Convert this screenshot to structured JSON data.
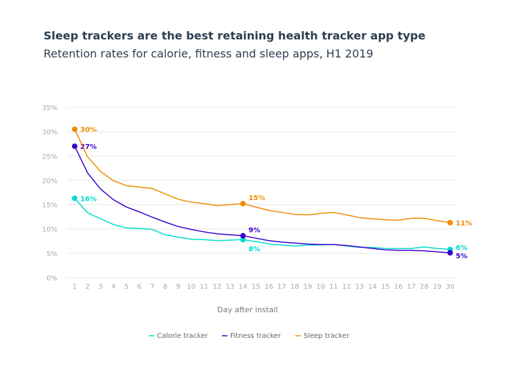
{
  "chart_data": {
    "type": "line",
    "title": "Sleep trackers are the best retaining health tracker app type",
    "subtitle": "Retention rates for calorie, fitness and sleep apps, H1 2019",
    "xlabel": "Day after install",
    "ylabel": "",
    "ylim": [
      0,
      35
    ],
    "y_ticks": [
      "0%",
      "5%",
      "10%",
      "15%",
      "20%",
      "25%",
      "30%",
      "35%"
    ],
    "categories": [
      "1",
      "2",
      "3",
      "4",
      "5",
      "6",
      "7",
      "8",
      "9",
      "10",
      "11",
      "12",
      "13",
      "14",
      "15",
      "16",
      "17",
      "18",
      "19",
      "10",
      "11",
      "12",
      "13",
      "14",
      "15",
      "16",
      "17",
      "28",
      "19",
      "30"
    ],
    "grid": true,
    "legend_position": "bottom",
    "series": [
      {
        "name": "Calorie tracker",
        "color": "#00dccc",
        "values": [
          16.3,
          13.3,
          12.1,
          10.9,
          10.2,
          10.1,
          9.9,
          8.8,
          8.3,
          7.9,
          7.8,
          7.6,
          7.7,
          7.8,
          7.4,
          6.9,
          6.7,
          6.5,
          6.7,
          6.7,
          6.8,
          6.5,
          6.2,
          6.2,
          6.0,
          6.0,
          6.0,
          6.3,
          6.0,
          5.8
        ],
        "labels": [
          {
            "index": 0,
            "text": "16%"
          },
          {
            "index": 13,
            "text": "8%"
          },
          {
            "index": 29,
            "text": "6%"
          }
        ]
      },
      {
        "name": "Fitness tracker",
        "color": "#3b00cc",
        "values": [
          27.0,
          21.5,
          18.2,
          16.0,
          14.5,
          13.5,
          12.4,
          11.4,
          10.5,
          9.9,
          9.4,
          9.0,
          8.8,
          8.6,
          8.1,
          7.6,
          7.3,
          7.1,
          6.9,
          6.8,
          6.8,
          6.6,
          6.3,
          6.0,
          5.7,
          5.6,
          5.6,
          5.5,
          5.3,
          5.1
        ],
        "labels": [
          {
            "index": 0,
            "text": "27%"
          },
          {
            "index": 13,
            "text": "9%"
          },
          {
            "index": 29,
            "text": "5%"
          }
        ]
      },
      {
        "name": "Sleep tracker",
        "color": "#f28a00",
        "values": [
          30.5,
          24.8,
          21.8,
          19.9,
          18.9,
          18.6,
          18.3,
          17.2,
          16.1,
          15.5,
          15.2,
          14.8,
          15.0,
          15.2,
          14.5,
          13.8,
          13.4,
          13.0,
          12.9,
          13.2,
          13.4,
          12.9,
          12.3,
          12.1,
          11.9,
          11.8,
          12.2,
          12.2,
          11.7,
          11.3
        ],
        "labels": [
          {
            "index": 0,
            "text": "30%"
          },
          {
            "index": 13,
            "text": "15%"
          },
          {
            "index": 29,
            "text": "11%"
          }
        ]
      }
    ]
  }
}
